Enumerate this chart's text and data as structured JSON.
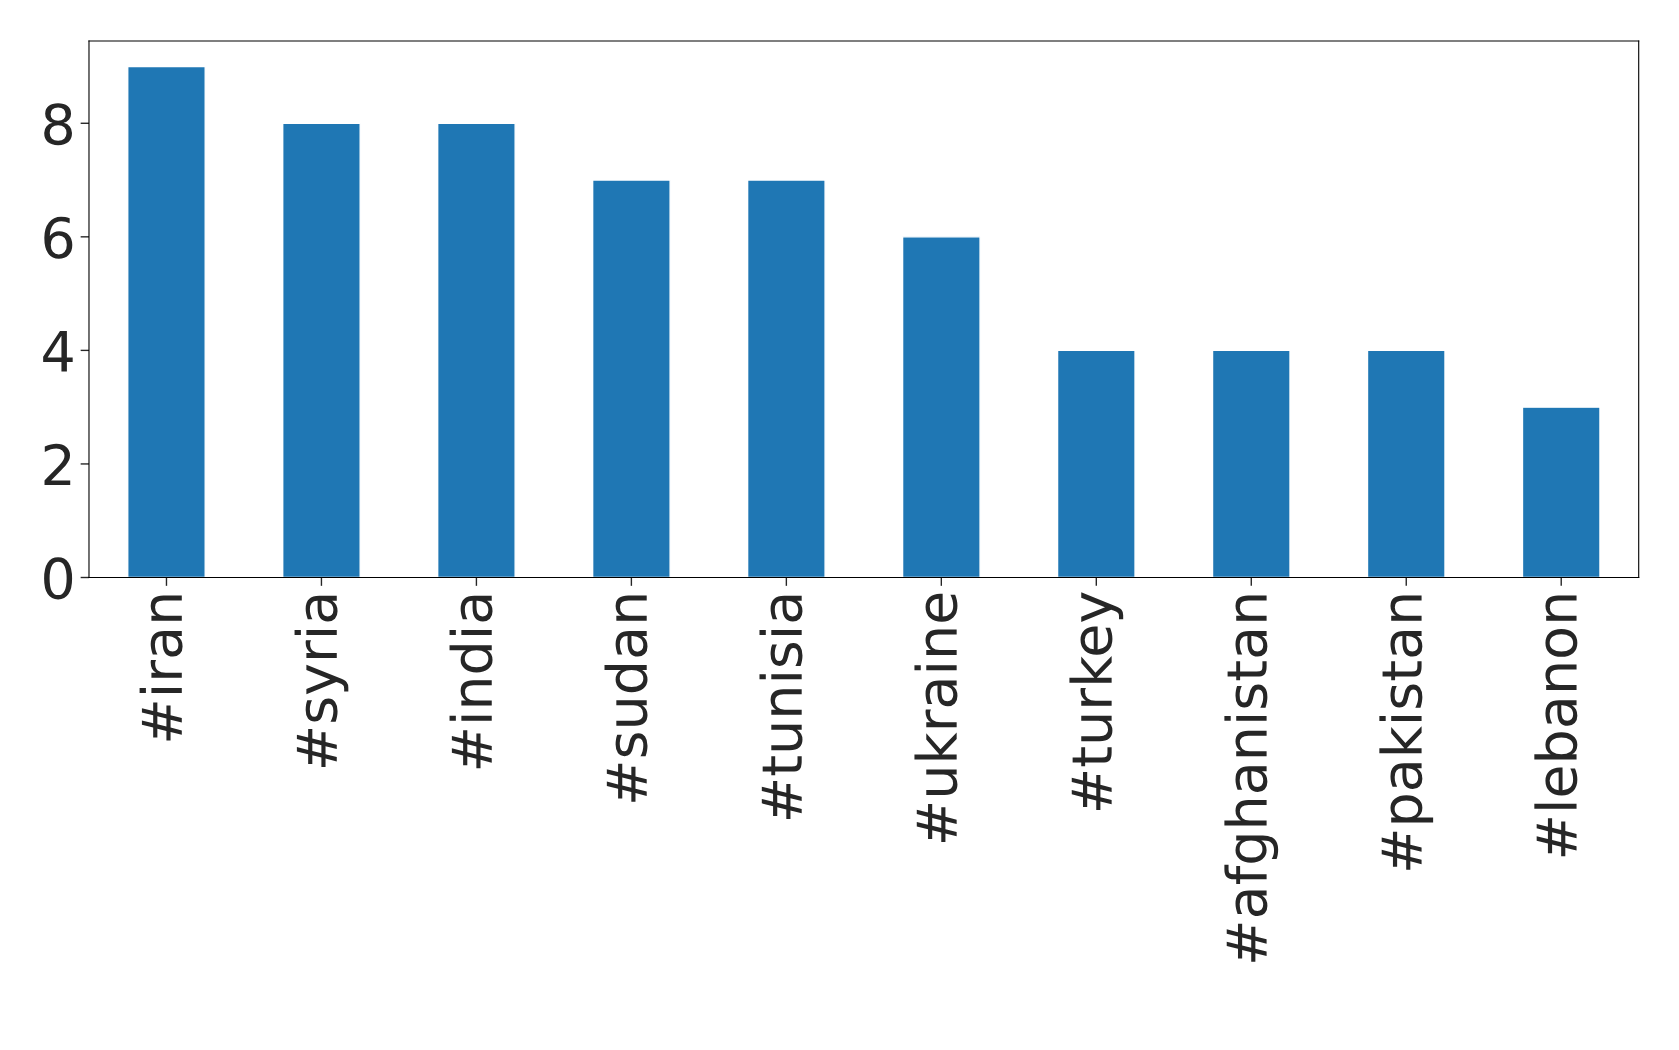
{
  "chart_data": {
    "type": "bar",
    "categories": [
      "#iran",
      "#syria",
      "#india",
      "#sudan",
      "#tunisia",
      "#ukraine",
      "#turkey",
      "#afghanistan",
      "#pakistan",
      "#lebanon"
    ],
    "values": [
      9,
      8,
      8,
      7,
      7,
      6,
      4,
      4,
      4,
      3
    ],
    "color": "#1f77b4",
    "ylim": [
      0,
      9.45
    ],
    "yticks": [
      0,
      2,
      4,
      6,
      8
    ],
    "grid": false,
    "legend": false
  }
}
